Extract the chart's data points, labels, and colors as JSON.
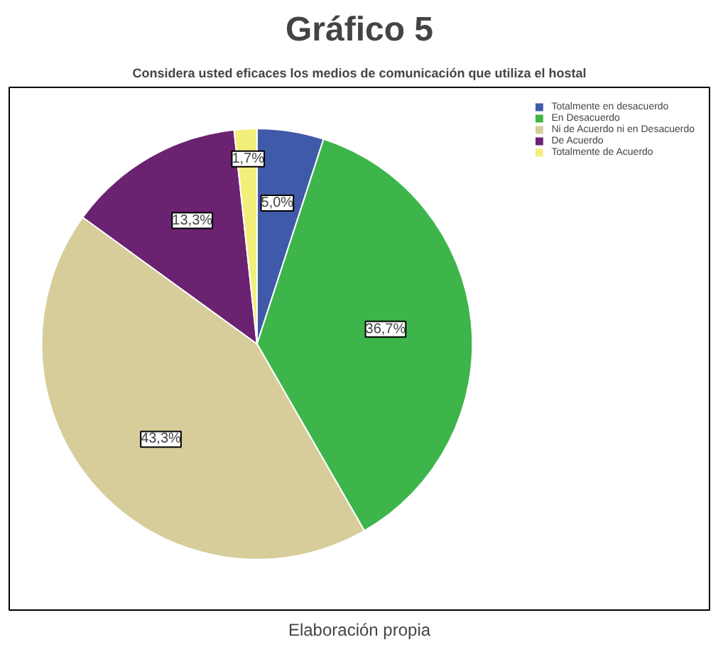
{
  "chart_data": {
    "type": "pie",
    "title": "Gráfico 5",
    "subtitle": "Considera usted eficaces los medios de comunicación que utiliza el hostal",
    "categories": [
      "Totalmente en desacuerdo",
      "En Desacuerdo",
      "Ni de Acuerdo ni en Desacuerdo",
      "De Acuerdo",
      "Totalmente de Acuerdo"
    ],
    "values": [
      5.0,
      36.7,
      43.3,
      13.3,
      1.7
    ],
    "colors": [
      "#3f5aa8",
      "#3db54a",
      "#d6cd9a",
      "#6b2270",
      "#f3ee7a"
    ],
    "value_labels": [
      "5,0%",
      "36,7%",
      "43,3%",
      "13,3%",
      "1,7%"
    ],
    "legend": "top right",
    "annotations": [
      "Elaboración propia"
    ]
  }
}
